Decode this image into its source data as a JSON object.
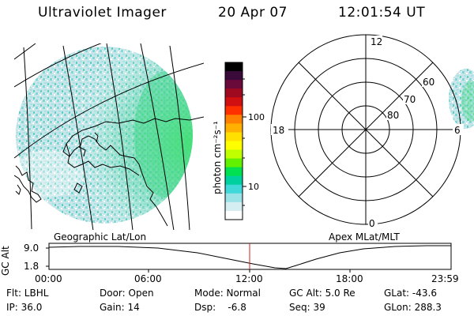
{
  "header": {
    "title": "Ultraviolet Imager",
    "date": "20 Apr 07",
    "time": "12:01:54 UT"
  },
  "colorbar": {
    "unit_label": "photon cm⁻²s⁻¹",
    "ticks": [
      "100",
      "10"
    ],
    "colors": [
      "#000000",
      "#3a0a3a",
      "#6a0a3a",
      "#a00a20",
      "#d01010",
      "#ff3000",
      "#ff8000",
      "#ffb000",
      "#ffe000",
      "#ffff00",
      "#c0ff00",
      "#60f000",
      "#00e050",
      "#00d0a0",
      "#40d8d8",
      "#9be2e6",
      "#d4eef2",
      "#ffffff"
    ]
  },
  "polar_plot": {
    "lat_labels": [
      "80",
      "70",
      "60"
    ],
    "mlt_labels": [
      "12",
      "18",
      "6",
      "0"
    ]
  },
  "labels": {
    "left_panel": "Geographic Lat/Lon",
    "right_panel": "Apex MLat/MLT"
  },
  "altitude_plot": {
    "ylabel": "GC Alt",
    "yticks": [
      "9.0",
      "1.8"
    ],
    "xticks": [
      "00:00",
      "06:00",
      "12:00",
      "18:00",
      "23:59"
    ],
    "marker_time": "12:01:54"
  },
  "info": {
    "filter": "Flt: LBHL",
    "door": "Door: Open",
    "mode": "Mode: Normal",
    "gc_alt": "GC Alt: 5.0 Re",
    "glat": "GLat: -43.6",
    "ip": "IP: 36.0",
    "gain": "Gain: 14",
    "dsp": "Dsp:    -6.8",
    "seq": "Seq: 39",
    "glon": "GLon: 288.3"
  }
}
